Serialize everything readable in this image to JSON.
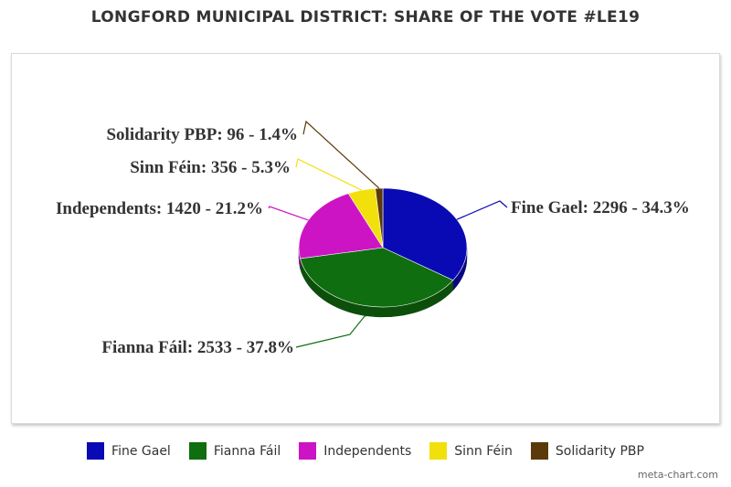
{
  "chart_data": {
    "type": "pie",
    "title": "LONGFORD MUNICIPAL DISTRICT: SHARE OF THE VOTE #LE19",
    "slices": [
      {
        "name": "Fine Gael",
        "value": 2296,
        "percent": 34.3,
        "color": "#0a0ab4",
        "label": "Fine Gael: 2296 - 34.3%"
      },
      {
        "name": "Fianna Fáil",
        "value": 2533,
        "percent": 37.8,
        "color": "#0f6e0f",
        "label": "Fianna Fáil: 2533 - 37.8%"
      },
      {
        "name": "Independents",
        "value": 1420,
        "percent": 21.2,
        "color": "#cc14c4",
        "label": "Independents: 1420 - 21.2%"
      },
      {
        "name": "Sinn Féin",
        "value": 356,
        "percent": 5.3,
        "color": "#f2e00c",
        "label": "Sinn Féin: 356 - 5.3%"
      },
      {
        "name": "Solidarity PBP",
        "value": 96,
        "percent": 1.4,
        "color": "#5a3a08",
        "label": "Solidarity PBP: 96 - 1.4%"
      }
    ],
    "legend_position": "bottom",
    "style": "3d"
  },
  "credit": "meta-chart.com"
}
